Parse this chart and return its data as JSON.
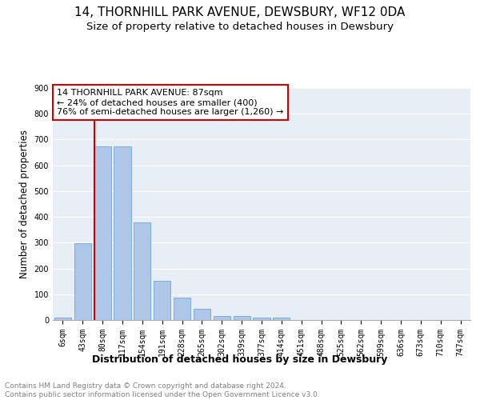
{
  "title": "14, THORNHILL PARK AVENUE, DEWSBURY, WF12 0DA",
  "subtitle": "Size of property relative to detached houses in Dewsbury",
  "xlabel": "Distribution of detached houses by size in Dewsbury",
  "ylabel": "Number of detached properties",
  "bar_labels": [
    "6sqm",
    "43sqm",
    "80sqm",
    "117sqm",
    "154sqm",
    "191sqm",
    "228sqm",
    "265sqm",
    "302sqm",
    "339sqm",
    "377sqm",
    "414sqm",
    "451sqm",
    "488sqm",
    "525sqm",
    "562sqm",
    "599sqm",
    "636sqm",
    "673sqm",
    "710sqm",
    "747sqm"
  ],
  "bar_values": [
    8,
    298,
    675,
    675,
    380,
    152,
    88,
    42,
    15,
    15,
    8,
    8,
    0,
    0,
    0,
    0,
    0,
    0,
    0,
    0,
    0
  ],
  "bar_color": "#aec6e8",
  "bar_edge_color": "#5a9fd4",
  "background_color": "#e8eef5",
  "vline_color": "#cc0000",
  "annotation_text": "14 THORNHILL PARK AVENUE: 87sqm\n← 24% of detached houses are smaller (400)\n76% of semi-detached houses are larger (1,260) →",
  "annotation_box_color": "#ffffff",
  "annotation_box_edge_color": "#cc0000",
  "ylim": [
    0,
    900
  ],
  "yticks": [
    0,
    100,
    200,
    300,
    400,
    500,
    600,
    700,
    800,
    900
  ],
  "footer_text": "Contains HM Land Registry data © Crown copyright and database right 2024.\nContains public sector information licensed under the Open Government Licence v3.0.",
  "title_fontsize": 11,
  "subtitle_fontsize": 9.5,
  "xlabel_fontsize": 9,
  "ylabel_fontsize": 8.5,
  "tick_fontsize": 7,
  "annotation_fontsize": 8,
  "footer_fontsize": 6.5
}
